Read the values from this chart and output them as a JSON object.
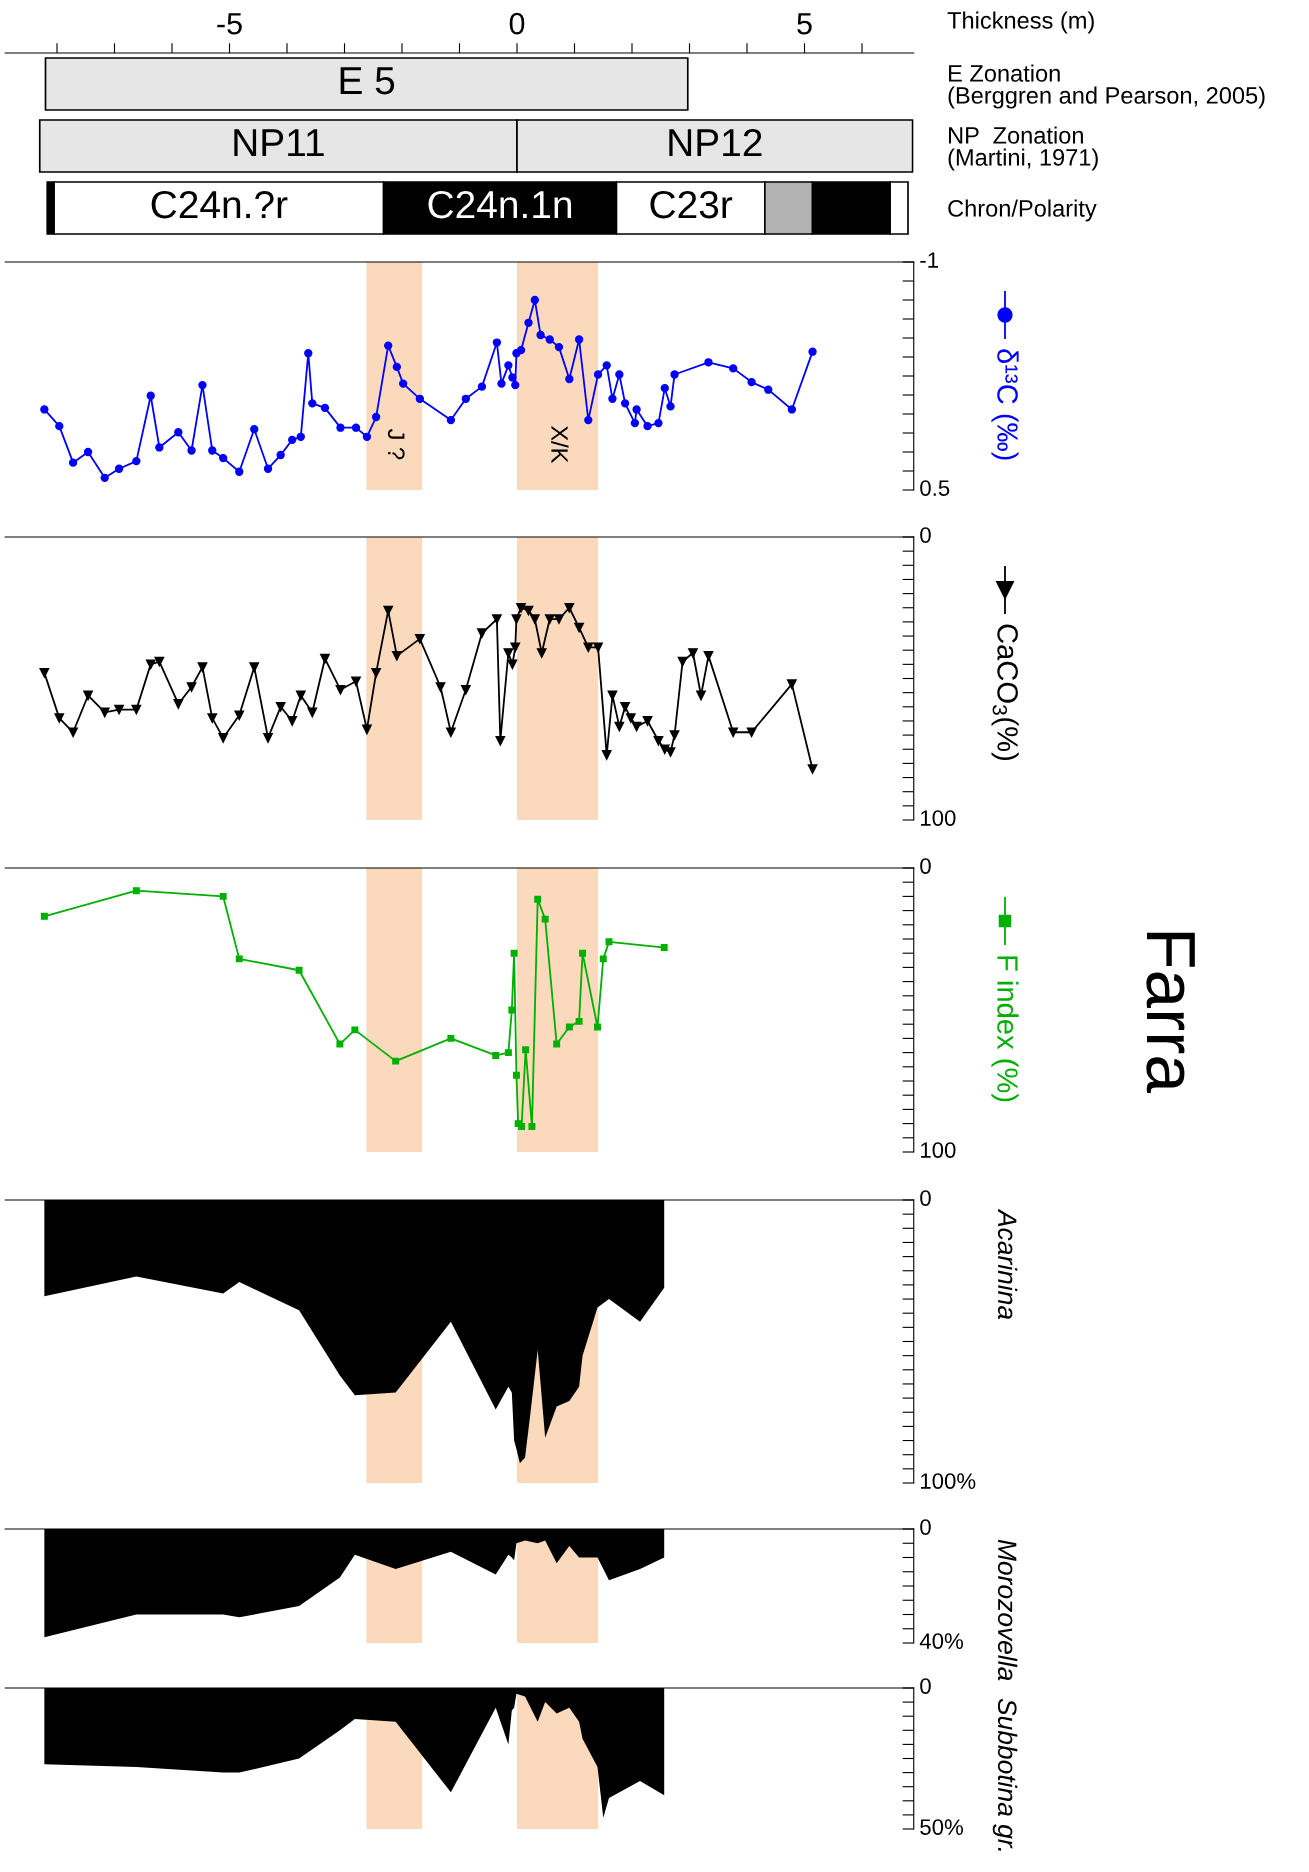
{
  "chart_data": [
    {
      "type": "bar",
      "orientation": "horizontal",
      "xlabel": "Thickness (m)",
      "xlim": [
        -8.9,
        6.9
      ],
      "categories": [
        "E Zonation\n(Berggren and Pearson, 2005)",
        "NP  Zonation\n(Martini, 1971)",
        "Chron/Polarity"
      ],
      "xticks": [
        {
          "value": -8,
          "label": null
        },
        {
          "value": -7,
          "label": null
        },
        {
          "value": -6,
          "label": null
        },
        -5,
        {
          "value": -4,
          "label": null
        },
        {
          "value": -3,
          "label": null
        },
        {
          "value": -2,
          "label": null
        },
        {
          "value": -1,
          "label": null
        },
        0,
        {
          "value": 1,
          "label": null
        },
        {
          "value": 2,
          "label": null
        },
        {
          "value": 3,
          "label": null
        },
        {
          "value": 4,
          "label": null
        },
        5,
        {
          "value": 6,
          "label": null
        }
      ],
      "series": [
        {
          "colors": [
            "#e6e6e6",
            "#e6e6e6",
            "#000000"
          ],
          "base": [
            -8.2,
            -8.3,
            -8.17
          ],
          "values": [
            11.17,
            8.3,
            0.12
          ],
          "value_labels": [
            "E 5",
            "NP11",
            null
          ]
        },
        {
          "colors": [
            null,
            "#e6e6e6",
            "#ffffff"
          ],
          "base": [
            null,
            0,
            -8.05
          ],
          "values": [
            null,
            6.88,
            5.73
          ],
          "value_labels": [
            null,
            "NP12",
            "C24n.?r"
          ]
        },
        {
          "colors": [
            null,
            null,
            "#000000"
          ],
          "base": [
            null,
            null,
            -2.32
          ],
          "values": [
            null,
            null,
            4.05
          ],
          "value_labels": [
            null,
            null,
            "C24n.1n"
          ]
        },
        {
          "colors": [
            null,
            null,
            "#ffffff"
          ],
          "base": [
            null,
            null,
            1.73
          ],
          "values": [
            null,
            null,
            2.58
          ],
          "value_labels": [
            null,
            null,
            "C23r"
          ]
        },
        {
          "colors": [
            null,
            null,
            "#b3b3b3"
          ],
          "base": [
            null,
            null,
            4.31
          ],
          "values": [
            null,
            null,
            0.83
          ]
        },
        {
          "colors": [
            null,
            null,
            "#000000"
          ],
          "base": [
            null,
            null,
            5.14
          ],
          "values": [
            null,
            null,
            1.35
          ]
        },
        {
          "colors": [
            null,
            null,
            "#ffffff"
          ],
          "base": [
            null,
            null,
            6.49
          ],
          "values": [
            null,
            null,
            0.31
          ]
        }
      ]
    },
    {
      "type": "line",
      "xlim": [
        -8.9,
        6.9
      ],
      "ylim": [
        0.5,
        -1
      ],
      "tick_labels": "y",
      "marker": "circle",
      "line_style": "solid",
      "legend": "right",
      "yticks": [
        {
          "value": -1,
          "label": "-1"
        },
        {
          "value": -0.875,
          "label": null
        },
        {
          "value": -0.75,
          "label": null
        },
        {
          "value": -0.625,
          "label": null
        },
        {
          "value": -0.5,
          "label": null
        },
        {
          "value": -0.375,
          "label": null
        },
        {
          "value": -0.25,
          "label": null
        },
        {
          "value": -0.125,
          "label": null
        },
        {
          "value": 0,
          "label": null
        },
        {
          "value": 0.125,
          "label": null
        },
        {
          "value": 0.25,
          "label": null
        },
        {
          "value": 0.375,
          "label": null
        },
        0.5
      ],
      "bands": [
        {
          "axis": "x",
          "from": -2.62,
          "to": -1.65,
          "label": "J ?",
          "color": "#fad9bd"
        },
        {
          "axis": "x",
          "from": 0,
          "to": 1.41,
          "label": "X/K",
          "color": "#fad9bd"
        }
      ],
      "series": [
        {
          "name": "δ¹³C (‰)",
          "color": "#0000ff",
          "x": [
            -8.22,
            -7.96,
            -7.72,
            -7.46,
            -7.17,
            -6.92,
            -6.62,
            -6.37,
            -6.22,
            -5.89,
            -5.66,
            -5.47,
            -5.3,
            -5.11,
            -4.83,
            -4.57,
            -4.33,
            -4.11,
            -3.91,
            -3.76,
            -3.63,
            -3.56,
            -3.34,
            -3.07,
            -2.8,
            -2.61,
            -2.45,
            -2.24,
            -2.09,
            -1.98,
            -1.69,
            -1.15,
            -0.89,
            -0.61,
            -0.35,
            -0.27,
            -0.15,
            -0.08,
            -0.03,
            -0.01,
            0.07,
            0.2,
            0.31,
            0.41,
            0.57,
            0.73,
            0.91,
            1.08,
            1.24,
            1.41,
            1.56,
            1.66,
            1.78,
            1.88,
            2.05,
            2.08,
            2.27,
            2.46,
            2.57,
            2.67,
            2.74,
            3.33,
            3.76,
            4.08,
            4.37,
            4.78,
            5.14
          ],
          "values": [
            -0.03,
            0.08,
            0.32,
            0.25,
            0.42,
            0.36,
            0.31,
            -0.12,
            0.22,
            0.12,
            0.24,
            -0.19,
            0.24,
            0.29,
            0.38,
            0.1,
            0.36,
            0.27,
            0.17,
            0.15,
            -0.4,
            -0.07,
            -0.04,
            0.09,
            0.09,
            0.15,
            0.02,
            -0.45,
            -0.31,
            -0.2,
            -0.1,
            0.04,
            -0.1,
            -0.18,
            -0.47,
            -0.2,
            -0.32,
            -0.24,
            -0.19,
            -0.4,
            -0.42,
            -0.6,
            -0.75,
            -0.52,
            -0.49,
            -0.44,
            -0.23,
            -0.49,
            0.04,
            -0.26,
            -0.32,
            -0.1,
            -0.26,
            -0.07,
            0.06,
            -0.03,
            0.08,
            0.06,
            -0.17,
            -0.05,
            -0.26,
            -0.34,
            -0.3,
            -0.21,
            -0.16,
            -0.03,
            -0.41
          ]
        }
      ]
    },
    {
      "type": "line",
      "xlim": [
        -8.9,
        6.9
      ],
      "ylim": [
        100,
        0
      ],
      "tick_labels": "y",
      "marker": "triangle",
      "line_style": "solid",
      "legend": "right",
      "yticks": [
        0,
        {
          "value": 5,
          "label": null
        },
        {
          "value": 10,
          "label": null
        },
        {
          "value": 15,
          "label": null
        },
        {
          "value": 20,
          "label": null
        },
        {
          "value": 25,
          "label": null
        },
        {
          "value": 30,
          "label": null
        },
        {
          "value": 35,
          "label": null
        },
        {
          "value": 40,
          "label": null
        },
        {
          "value": 45,
          "label": null
        },
        {
          "value": 50,
          "label": null
        },
        {
          "value": 55,
          "label": null
        },
        {
          "value": 60,
          "label": null
        },
        {
          "value": 65,
          "label": null
        },
        {
          "value": 70,
          "label": null
        },
        {
          "value": 75,
          "label": null
        },
        {
          "value": 80,
          "label": null
        },
        {
          "value": 85,
          "label": null
        },
        {
          "value": 90,
          "label": null
        },
        {
          "value": 95,
          "label": null
        },
        100
      ],
      "bands": [
        {
          "axis": "x",
          "from": -2.62,
          "to": -1.65,
          "color": "#fad9bd"
        },
        {
          "axis": "x",
          "from": 0,
          "to": 1.41,
          "color": "#fad9bd"
        }
      ],
      "series": [
        {
          "name": "CaCO$_{3}$(%)",
          "color": "#000000",
          "x": [
            -8.22,
            -7.96,
            -7.72,
            -7.46,
            -7.17,
            -6.92,
            -6.62,
            -6.37,
            -6.22,
            -5.89,
            -5.66,
            -5.47,
            -5.3,
            -5.11,
            -4.83,
            -4.57,
            -4.33,
            -4.11,
            -3.91,
            -3.76,
            -3.56,
            -3.34,
            -3.07,
            -2.8,
            -2.61,
            -2.45,
            -2.24,
            -2.09,
            -1.69,
            -1.33,
            -1.15,
            -0.89,
            -0.61,
            -0.35,
            -0.29,
            -0.15,
            -0.08,
            -0.03,
            -0.01,
            0.07,
            0.2,
            0.31,
            0.43,
            0.57,
            0.73,
            0.91,
            1.08,
            1.24,
            1.41,
            1.56,
            1.66,
            1.78,
            1.88,
            1.98,
            2.08,
            2.27,
            2.46,
            2.57,
            2.67,
            2.74,
            2.88,
            3.06,
            3.2,
            3.33,
            3.76,
            4.08,
            4.78,
            5.14
          ],
          "values": [
            48,
            64,
            69,
            56,
            62,
            61,
            61,
            45,
            44,
            59,
            53,
            46,
            64,
            71,
            63,
            46,
            71,
            60,
            65,
            56,
            62,
            43,
            54,
            51,
            68,
            48,
            26,
            42,
            36,
            53,
            69,
            54,
            34,
            29,
            72,
            41,
            45,
            39,
            29,
            25,
            26,
            29,
            41,
            29,
            29,
            25,
            32,
            39,
            39,
            77,
            56,
            67,
            60,
            64,
            67,
            65,
            72,
            75,
            76,
            70,
            44,
            41,
            56,
            42,
            69,
            69,
            52,
            82
          ]
        }
      ]
    },
    {
      "type": "line",
      "annotations": [
        "Farra"
      ],
      "xlim": [
        -8.9,
        6.9
      ],
      "ylim": [
        100,
        0
      ],
      "tick_labels": "y",
      "marker": "square",
      "line_style": "solid",
      "legend": "right",
      "yticks": [
        0,
        {
          "value": 5,
          "label": null
        },
        {
          "value": 10,
          "label": null
        },
        {
          "value": 15,
          "label": null
        },
        {
          "value": 20,
          "label": null
        },
        {
          "value": 25,
          "label": null
        },
        {
          "value": 30,
          "label": null
        },
        {
          "value": 35,
          "label": null
        },
        {
          "value": 40,
          "label": null
        },
        {
          "value": 45,
          "label": null
        },
        {
          "value": 50,
          "label": null
        },
        {
          "value": 55,
          "label": null
        },
        {
          "value": 60,
          "label": null
        },
        {
          "value": 65,
          "label": null
        },
        {
          "value": 70,
          "label": null
        },
        {
          "value": 75,
          "label": null
        },
        {
          "value": 80,
          "label": null
        },
        {
          "value": 85,
          "label": null
        },
        {
          "value": 90,
          "label": null
        },
        {
          "value": 95,
          "label": null
        },
        100
      ],
      "bands": [
        {
          "axis": "x",
          "from": -2.62,
          "to": -1.65,
          "color": "#fad9bd"
        },
        {
          "axis": "x",
          "from": 0,
          "to": 1.41,
          "color": "#fad9bd"
        }
      ],
      "series": [
        {
          "name": "F index (%)",
          "color": "#00b000",
          "x": [
            -8.22,
            -6.62,
            -5.11,
            -4.83,
            -3.79,
            -3.08,
            -2.82,
            -2.11,
            -1.15,
            -0.37,
            -0.15,
            -0.09,
            -0.05,
            -0.01,
            0.02,
            0.08,
            0.15,
            0.26,
            0.36,
            0.49,
            0.69,
            0.91,
            1.08,
            1.14,
            1.4,
            1.5,
            1.6,
            2.56
          ],
          "values": [
            17,
            8,
            10,
            32,
            36,
            62,
            57,
            68,
            60,
            66,
            65,
            50,
            30,
            73,
            90,
            91,
            64,
            91,
            11,
            18,
            62,
            56,
            54,
            30,
            56,
            32,
            26,
            28
          ]
        }
      ]
    },
    {
      "type": "area",
      "ylabel": "Acarinina",
      "xlim": [
        -8.9,
        6.9
      ],
      "ylim": [
        100,
        0
      ],
      "tick_labels": "y",
      "yticks": [
        0,
        {
          "value": 5,
          "label": null
        },
        {
          "value": 10,
          "label": null
        },
        {
          "value": 15,
          "label": null
        },
        {
          "value": 20,
          "label": null
        },
        {
          "value": 25,
          "label": null
        },
        {
          "value": 30,
          "label": null
        },
        {
          "value": 35,
          "label": null
        },
        {
          "value": 40,
          "label": null
        },
        {
          "value": 45,
          "label": null
        },
        {
          "value": 50,
          "label": null
        },
        {
          "value": 55,
          "label": null
        },
        {
          "value": 60,
          "label": null
        },
        {
          "value": 65,
          "label": null
        },
        {
          "value": 70,
          "label": null
        },
        {
          "value": 75,
          "label": null
        },
        {
          "value": 80,
          "label": null
        },
        {
          "value": 85,
          "label": null
        },
        {
          "value": 90,
          "label": null
        },
        {
          "value": 95,
          "label": null
        },
        {
          "value": 100,
          "label": "100%"
        }
      ],
      "bands": [
        {
          "axis": "x",
          "from": -2.62,
          "to": -1.65,
          "color": "#fad9bd"
        },
        {
          "axis": "x",
          "from": 0,
          "to": 1.41,
          "color": "#fad9bd"
        }
      ],
      "series": [
        {
          "color": "#000000",
          "x": [
            -8.22,
            -6.62,
            -5.11,
            -4.83,
            -3.79,
            -3.08,
            -2.82,
            -2.11,
            -1.15,
            -0.37,
            -0.15,
            -0.09,
            -0.05,
            -0.01,
            0.05,
            0.14,
            0.23,
            0.36,
            0.49,
            0.69,
            0.91,
            1.08,
            1.14,
            1.4,
            1.6,
            2.14,
            2.56
          ],
          "values": [
            34,
            27,
            33,
            29,
            39,
            62,
            69,
            68,
            43,
            74,
            66,
            68,
            85,
            88,
            93,
            91,
            76,
            53,
            84,
            73,
            71,
            66,
            55,
            38,
            35,
            43,
            31
          ]
        }
      ]
    },
    {
      "type": "area",
      "ylabel": "Morozovella",
      "xlim": [
        -8.9,
        6.9
      ],
      "ylim": [
        40,
        0
      ],
      "tick_labels": "y",
      "yticks": [
        0,
        {
          "value": 5,
          "label": null
        },
        {
          "value": 10,
          "label": null
        },
        {
          "value": 15,
          "label": null
        },
        {
          "value": 20,
          "label": null
        },
        {
          "value": 25,
          "label": null
        },
        {
          "value": 30,
          "label": null
        },
        {
          "value": 35,
          "label": null
        },
        {
          "value": 40,
          "label": "40%"
        }
      ],
      "bands": [
        {
          "axis": "x",
          "from": -2.62,
          "to": -1.65,
          "color": "#fad9bd"
        },
        {
          "axis": "x",
          "from": 0,
          "to": 1.41,
          "color": "#fad9bd"
        }
      ],
      "series": [
        {
          "color": "#000000",
          "x": [
            -8.22,
            -6.62,
            -5.11,
            -4.83,
            -3.79,
            -3.08,
            -2.82,
            -2.11,
            -1.15,
            -0.37,
            -0.15,
            -0.09,
            -0.05,
            -0.01,
            0.14,
            0.36,
            0.49,
            0.69,
            0.91,
            1.08,
            1.14,
            1.4,
            1.6,
            2.14,
            2.56
          ],
          "values": [
            38,
            30,
            30,
            31,
            27,
            17,
            9,
            14,
            8,
            16,
            9,
            10,
            11,
            5,
            4,
            5,
            4,
            12,
            6,
            10,
            10,
            10,
            18,
            14,
            10
          ]
        }
      ]
    },
    {
      "type": "area",
      "ylabel": "Subbotina gr.",
      "xlim": [
        -8.9,
        6.9
      ],
      "ylim": [
        50,
        0
      ],
      "tick_labels": "y",
      "yticks": [
        0,
        {
          "value": 5,
          "label": null
        },
        {
          "value": 10,
          "label": null
        },
        {
          "value": 15,
          "label": null
        },
        {
          "value": 20,
          "label": null
        },
        {
          "value": 25,
          "label": null
        },
        {
          "value": 30,
          "label": null
        },
        {
          "value": 35,
          "label": null
        },
        {
          "value": 40,
          "label": null
        },
        {
          "value": 45,
          "label": null
        },
        {
          "value": 50,
          "label": "50%"
        }
      ],
      "bands": [
        {
          "axis": "x",
          "from": -2.62,
          "to": -1.65,
          "color": "#fad9bd"
        },
        {
          "axis": "x",
          "from": 0,
          "to": 1.41,
          "color": "#fad9bd"
        }
      ],
      "series": [
        {
          "color": "#000000",
          "x": [
            -8.22,
            -6.62,
            -5.11,
            -4.83,
            -3.79,
            -3.08,
            -2.82,
            -2.11,
            -1.15,
            -0.37,
            -0.15,
            -0.09,
            -0.05,
            -0.01,
            0.14,
            0.36,
            0.49,
            0.69,
            0.91,
            1.08,
            1.14,
            1.4,
            1.5,
            1.6,
            2.14,
            2.56
          ],
          "values": [
            27,
            28,
            30,
            30,
            25,
            15,
            11,
            12,
            37,
            7,
            20,
            8,
            7,
            2,
            3,
            12,
            5,
            9,
            7,
            12,
            18,
            28,
            46,
            39,
            33,
            38
          ]
        }
      ]
    }
  ]
}
